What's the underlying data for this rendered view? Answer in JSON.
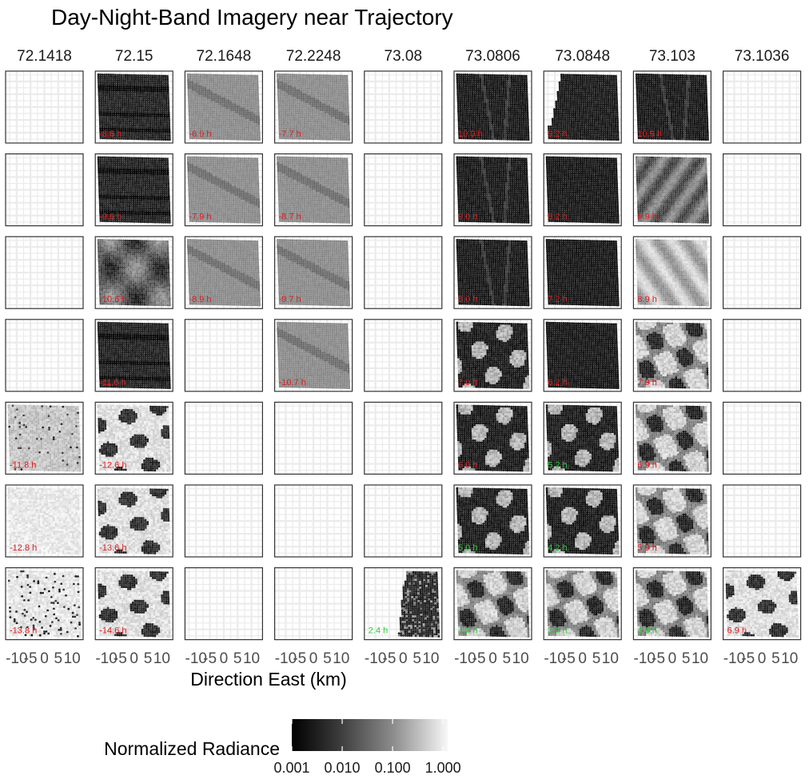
{
  "chart_data": {
    "type": "heatmap",
    "title": "Day-Night-Band Imagery near Trajectory",
    "xlabel": "Direction East (km)",
    "ylabel": "",
    "facet_columns": [
      "72.1418",
      "72.15",
      "72.1648",
      "72.2248",
      "73.08",
      "73.0806",
      "73.0848",
      "73.103",
      "73.1036"
    ],
    "n_rows": 7,
    "x_ticks": [
      "-10",
      "-5",
      "0",
      "5",
      "10"
    ],
    "xlim": [
      -14,
      14
    ],
    "ylim": [
      -14,
      14
    ],
    "grid": true,
    "panels": [
      {
        "col": 1,
        "row": 0,
        "label": "-8.6 h",
        "label_color": "#e41a1c",
        "style": "dark-stripes"
      },
      {
        "col": 2,
        "row": 0,
        "label": "-6.9 h",
        "label_color": "#e41a1c",
        "style": "gray-band"
      },
      {
        "col": 3,
        "row": 0,
        "label": "-7.7 h",
        "label_color": "#e41a1c",
        "style": "gray-band"
      },
      {
        "col": 5,
        "row": 0,
        "label": "10.0 h",
        "label_color": "#e41a1c",
        "style": "dark-lines"
      },
      {
        "col": 6,
        "row": 0,
        "label": "9.2 h",
        "label_color": "#e41a1c",
        "style": "dark-cut"
      },
      {
        "col": 7,
        "row": 0,
        "label": "10.9 h",
        "label_color": "#e41a1c",
        "style": "dark-lines"
      },
      {
        "col": 1,
        "row": 1,
        "label": "-9.6 h",
        "label_color": "#e41a1c",
        "style": "dark-stripes"
      },
      {
        "col": 2,
        "row": 1,
        "label": "-7.9 h",
        "label_color": "#e41a1c",
        "style": "gray-band"
      },
      {
        "col": 3,
        "row": 1,
        "label": "-8.7 h",
        "label_color": "#e41a1c",
        "style": "gray-band"
      },
      {
        "col": 5,
        "row": 1,
        "label": "9.0 h",
        "label_color": "#e41a1c",
        "style": "dark-lines"
      },
      {
        "col": 6,
        "row": 1,
        "label": "8.2 h",
        "label_color": "#e41a1c",
        "style": "dark-solid"
      },
      {
        "col": 7,
        "row": 1,
        "label": "9.9 h",
        "label_color": "#e41a1c",
        "style": "gray-streaks"
      },
      {
        "col": 1,
        "row": 2,
        "label": "-10.6 h",
        "label_color": "#e41a1c",
        "style": "mixed-dark"
      },
      {
        "col": 2,
        "row": 2,
        "label": "-8.9 h",
        "label_color": "#e41a1c",
        "style": "gray-band"
      },
      {
        "col": 3,
        "row": 2,
        "label": "-9.7 h",
        "label_color": "#e41a1c",
        "style": "gray-band"
      },
      {
        "col": 5,
        "row": 2,
        "label": "8.0 h",
        "label_color": "#e41a1c",
        "style": "dark-lines"
      },
      {
        "col": 6,
        "row": 2,
        "label": "7.2 h",
        "label_color": "#e41a1c",
        "style": "dark-solid"
      },
      {
        "col": 7,
        "row": 2,
        "label": "8.9 h",
        "label_color": "#e41a1c",
        "style": "light-streaks"
      },
      {
        "col": 1,
        "row": 3,
        "label": "-11.6 h",
        "label_color": "#e41a1c",
        "style": "dark-stripes"
      },
      {
        "col": 3,
        "row": 3,
        "label": "-10.7 h",
        "label_color": "#e41a1c",
        "style": "gray-band"
      },
      {
        "col": 5,
        "row": 3,
        "label": "7.0 h",
        "label_color": "#e41a1c",
        "style": "cloud-dark"
      },
      {
        "col": 6,
        "row": 3,
        "label": "6.2 h",
        "label_color": "#e41a1c",
        "style": "dark-solid"
      },
      {
        "col": 7,
        "row": 3,
        "label": "7.9 h",
        "label_color": "#e41a1c",
        "style": "cloud-mixed"
      },
      {
        "col": 0,
        "row": 4,
        "label": "-11.8 h",
        "label_color": "#e41a1c",
        "style": "light-gray"
      },
      {
        "col": 1,
        "row": 4,
        "label": "-12.6 h",
        "label_color": "#e41a1c",
        "style": "cloud-light"
      },
      {
        "col": 5,
        "row": 4,
        "label": "6.0 h",
        "label_color": "#e41a1c",
        "style": "cloud-dark"
      },
      {
        "col": 6,
        "row": 4,
        "label": "5.2 h",
        "label_color": "#2ecc40",
        "style": "cloud-dark"
      },
      {
        "col": 7,
        "row": 4,
        "label": "6.9 h",
        "label_color": "#e41a1c",
        "style": "cloud-mixed"
      },
      {
        "col": 0,
        "row": 5,
        "label": "-12.8 h",
        "label_color": "#e41a1c",
        "style": "very-light"
      },
      {
        "col": 1,
        "row": 5,
        "label": "-13.6 h",
        "label_color": "#e41a1c",
        "style": "cloud-light"
      },
      {
        "col": 5,
        "row": 5,
        "label": "5.0 h",
        "label_color": "#2ecc40",
        "style": "cloud-dark"
      },
      {
        "col": 6,
        "row": 5,
        "label": "4.2 h",
        "label_color": "#2ecc40",
        "style": "cloud-dark"
      },
      {
        "col": 7,
        "row": 5,
        "label": "5.9 h",
        "label_color": "#e41a1c",
        "style": "cloud-mixed"
      },
      {
        "col": 0,
        "row": 6,
        "label": "-13.8 h",
        "label_color": "#e41a1c",
        "style": "light-speckle"
      },
      {
        "col": 1,
        "row": 6,
        "label": "-14.6 h",
        "label_color": "#e41a1c",
        "style": "cloud-light"
      },
      {
        "col": 4,
        "row": 6,
        "label": "2.4 h",
        "label_color": "#2ecc40",
        "style": "partial-right"
      },
      {
        "col": 5,
        "row": 6,
        "label": "4.0 h",
        "label_color": "#2ecc40",
        "style": "cloud-mixed"
      },
      {
        "col": 6,
        "row": 6,
        "label": "3.2 h",
        "label_color": "#2ecc40",
        "style": "cloud-mixed"
      },
      {
        "col": 7,
        "row": 6,
        "label": "4.9 h",
        "label_color": "#2ecc40",
        "style": "cloud-mixed"
      },
      {
        "col": 8,
        "row": 6,
        "label": "6.9 h",
        "label_color": "#e41a1c",
        "style": "cloud-light"
      }
    ],
    "legend": {
      "title": "Normalized Radiance",
      "scale": "log",
      "ticks": [
        "0.001",
        "0.010",
        "0.100",
        "1.000"
      ],
      "colors": [
        "#000000",
        "#ffffff"
      ],
      "placement": "bottom"
    },
    "colors": {
      "negative_label": "#e41a1c",
      "positive_label": "#2ecc40",
      "grid": "#ebebeb",
      "panel_border": "#333333"
    }
  }
}
